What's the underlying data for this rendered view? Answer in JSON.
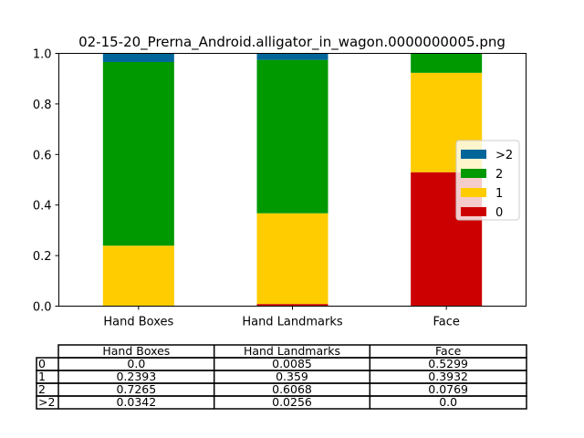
{
  "chart_data": {
    "type": "bar",
    "stacked": true,
    "title": "02-15-20_Prerna_Android.alligator_in_wagon.0000000005.png",
    "categories": [
      "Hand Boxes",
      "Hand Landmarks",
      "Face"
    ],
    "ylim": [
      0,
      1.0
    ],
    "yticks": [
      "0.0",
      "0.2",
      "0.4",
      "0.6",
      "0.8",
      "1.0"
    ],
    "grid": false,
    "legend_position": "right",
    "series": [
      {
        "name": "0",
        "color": "#cc0000",
        "values": [
          0.0,
          0.0085,
          0.5299
        ]
      },
      {
        "name": "1",
        "color": "#ffcc00",
        "values": [
          0.2393,
          0.359,
          0.3932
        ]
      },
      {
        "name": "2",
        "color": "#009900",
        "values": [
          0.7265,
          0.6068,
          0.0769
        ]
      },
      {
        "name": ">2",
        "color": "#006699",
        "values": [
          0.0342,
          0.0256,
          0.0
        ]
      }
    ],
    "table": {
      "columns": [
        "Hand Boxes",
        "Hand Landmarks",
        "Face"
      ],
      "rows": [
        {
          "label": "0",
          "cells": [
            "0.0",
            "0.0085",
            "0.5299"
          ]
        },
        {
          "label": "1",
          "cells": [
            "0.2393",
            "0.359",
            "0.3932"
          ]
        },
        {
          "label": "2",
          "cells": [
            "0.7265",
            "0.6068",
            "0.0769"
          ]
        },
        {
          "label": ">2",
          "cells": [
            "0.0342",
            "0.0256",
            "0.0"
          ]
        }
      ]
    }
  }
}
